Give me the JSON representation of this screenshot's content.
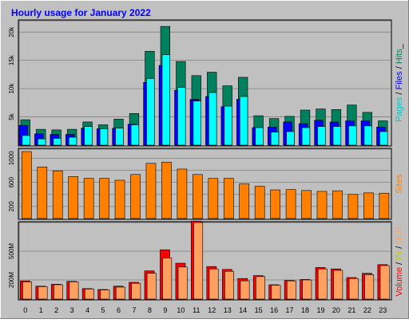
{
  "title": "Hourly usage for January 2022",
  "colors": {
    "background": "#c0c0c0",
    "plot_background": "#c0c0c0",
    "border_dark": "#808080",
    "title": "#0000ff",
    "hits": "#00805c",
    "files": "#0000ff",
    "pages": "#00ffff",
    "sites": "#ff8000",
    "volume": "#ff0000",
    "in": "#c8c800",
    "out": "#ffa060"
  },
  "legends": {
    "top": [
      {
        "text": "Pages",
        "color": "#00c8c8"
      },
      {
        "text": " / ",
        "color": "#000000"
      },
      {
        "text": "Files",
        "color": "#0000ff"
      },
      {
        "text": " / ",
        "color": "#000000"
      },
      {
        "text": "Hits",
        "color": "#00805c"
      },
      {
        "text": "_",
        "color": "#000000"
      }
    ],
    "middle": [
      {
        "text": "Sites",
        "color": "#ff8000"
      }
    ],
    "bottom": [
      {
        "text": "Volume",
        "color": "#ff0000"
      },
      {
        "text": " / ",
        "color": "#000000"
      },
      {
        "text": "IN",
        "color": "#c8c800"
      },
      {
        "text": " / ",
        "color": "#000000"
      },
      {
        "text": "OUT",
        "color": "#ffa060"
      }
    ]
  },
  "chart_data": [
    {
      "type": "bar",
      "panel": "hits-files-pages",
      "categories": [
        "0",
        "1",
        "2",
        "3",
        "4",
        "5",
        "6",
        "7",
        "8",
        "9",
        "10",
        "11",
        "12",
        "13",
        "14",
        "15",
        "16",
        "17",
        "18",
        "19",
        "20",
        "21",
        "22",
        "23"
      ],
      "ylim": [
        0,
        22000
      ],
      "yticks": [
        5000,
        10000,
        15000,
        20000
      ],
      "ytick_labels": [
        "5k",
        "10k",
        "15k",
        "20k"
      ],
      "series": [
        {
          "name": "Hits",
          "values": [
            4500,
            2800,
            2700,
            2800,
            4100,
            3600,
            4600,
            5600,
            16600,
            21000,
            14800,
            12300,
            12900,
            10500,
            12000,
            5200,
            4700,
            5100,
            6200,
            6400,
            6300,
            7100,
            5800,
            4300
          ]
        },
        {
          "name": "Files",
          "values": [
            3500,
            2000,
            1900,
            1900,
            3000,
            2900,
            3000,
            3700,
            11100,
            14100,
            9700,
            8100,
            8600,
            6800,
            8100,
            3100,
            3200,
            4100,
            3800,
            4400,
            4100,
            4300,
            4300,
            3200
          ]
        },
        {
          "name": "Pages",
          "values": [
            1700,
            1100,
            1200,
            1400,
            3300,
            2900,
            3000,
            3600,
            11800,
            16000,
            10200,
            7800,
            9300,
            6900,
            8600,
            3100,
            2300,
            2400,
            3100,
            3300,
            3300,
            3400,
            3400,
            2400
          ]
        }
      ]
    },
    {
      "type": "bar",
      "panel": "sites",
      "categories": [
        "0",
        "1",
        "2",
        "3",
        "4",
        "5",
        "6",
        "7",
        "8",
        "9",
        "10",
        "11",
        "12",
        "13",
        "14",
        "15",
        "16",
        "17",
        "18",
        "19",
        "20",
        "21",
        "22",
        "23"
      ],
      "ylim": [
        0,
        1150
      ],
      "yticks": [
        200,
        400,
        600,
        800,
        1000
      ],
      "ytick_labels": [
        "200",
        "",
        "600",
        "",
        "1000"
      ],
      "series": [
        {
          "name": "Sites",
          "values": [
            1110,
            855,
            790,
            695,
            665,
            665,
            635,
            730,
            915,
            935,
            820,
            730,
            665,
            665,
            575,
            535,
            475,
            480,
            465,
            450,
            460,
            400,
            425,
            420
          ]
        }
      ]
    },
    {
      "type": "bar",
      "panel": "volume",
      "categories": [
        "0",
        "1",
        "2",
        "3",
        "4",
        "5",
        "6",
        "7",
        "8",
        "9",
        "10",
        "11",
        "12",
        "13",
        "14",
        "15",
        "16",
        "17",
        "18",
        "19",
        "20",
        "21",
        "22",
        "23"
      ],
      "ylim": [
        0,
        800
      ],
      "yticks": [
        200,
        500
      ],
      "ytick_labels": [
        "200M",
        "500M"
      ],
      "series": [
        {
          "name": "Volume",
          "values": [
            190,
            135,
            155,
            185,
            110,
            100,
            135,
            175,
            295,
            515,
            375,
            815,
            340,
            310,
            215,
            245,
            150,
            195,
            205,
            330,
            315,
            225,
            270,
            360
          ]
        },
        {
          "name": "OUT",
          "values": [
            180,
            130,
            150,
            180,
            105,
            95,
            125,
            165,
            270,
            430,
            335,
            800,
            315,
            290,
            190,
            235,
            145,
            190,
            200,
            315,
            300,
            215,
            255,
            350
          ]
        }
      ]
    }
  ]
}
